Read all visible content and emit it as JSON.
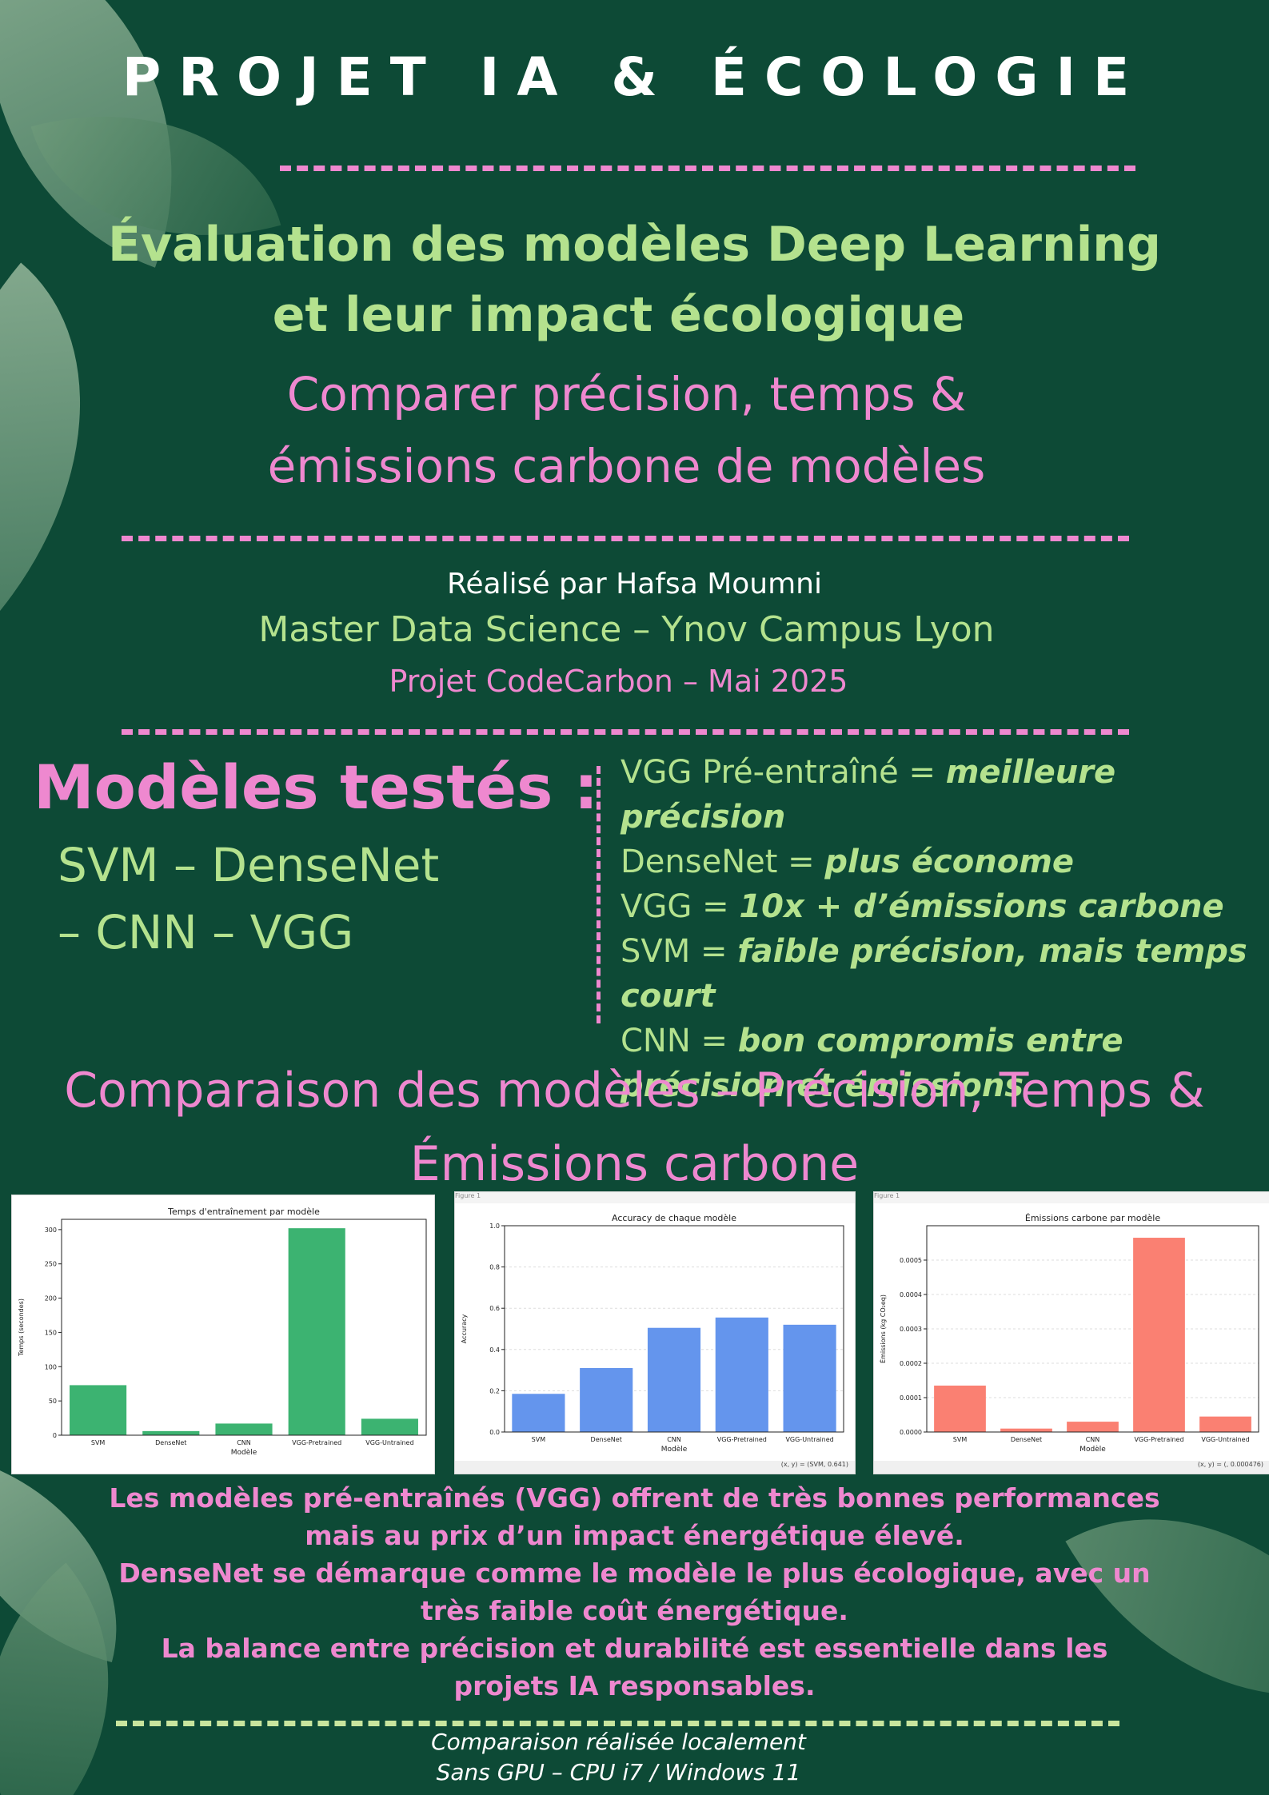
{
  "header": {
    "title": "PROJET IA & ÉCOLOGIE",
    "subtitle_line1": "Évaluation des modèles Deep Learning",
    "subtitle_line2": "et leur impact écologique",
    "tagline_line1": "Comparer précision, temps &",
    "tagline_line2": "émissions carbone de modèles"
  },
  "credits": {
    "author": "Réalisé par Hafsa Moumni",
    "program": "Master Data Science – Ynov Campus Lyon",
    "project": "Projet CodeCarbon – Mai 2025"
  },
  "models": {
    "heading": "Modèles testés :",
    "list_line1": "SVM – DenseNet",
    "list_line2": "– CNN – VGG"
  },
  "findings": [
    {
      "label": "VGG Pré-entraîné = ",
      "value": "meilleure précision"
    },
    {
      "label": "DenseNet = ",
      "value": "plus économe"
    },
    {
      "label": "VGG = ",
      "value": "10x + d’émissions carbone"
    },
    {
      "label": "SVM = ",
      "value": "faible précision, mais temps court"
    },
    {
      "label": "CNN = ",
      "value": "bon compromis entre précision et émissions"
    }
  ],
  "comparison": {
    "heading_line1": "Comparaison des modèles – Précision, Temps &",
    "heading_line2": "Émissions carbone"
  },
  "colors": {
    "background": "#0d4a36",
    "pink": "#ee88cf",
    "green": "#b4e28e",
    "bar_time": "#3cb371",
    "bar_accuracy": "#6495ed",
    "bar_emissions": "#fa8072"
  },
  "chart_data": [
    {
      "type": "bar",
      "title": "Temps d'entraînement par modèle",
      "xlabel": "Modèle",
      "ylabel": "Temps (secondes)",
      "categories": [
        "SVM",
        "DenseNet",
        "CNN",
        "VGG-Pretrained",
        "VGG-Untrained"
      ],
      "values": [
        73,
        6,
        17,
        302,
        24
      ],
      "ylim": [
        0,
        315
      ],
      "yticks": [
        "0",
        "50",
        "100",
        "150",
        "200",
        "250",
        "300"
      ],
      "ytick_values": [
        0,
        50,
        100,
        150,
        200,
        250,
        300
      ],
      "color": "#3cb371",
      "window_title": "",
      "status": "",
      "grid": false
    },
    {
      "type": "bar",
      "title": "Accuracy de chaque modèle",
      "xlabel": "Modèle",
      "ylabel": "Accuracy",
      "categories": [
        "SVM",
        "DenseNet",
        "CNN",
        "VGG-Pretrained",
        "VGG-Untrained"
      ],
      "values": [
        0.185,
        0.31,
        0.505,
        0.555,
        0.52
      ],
      "ylim": [
        0,
        1.0
      ],
      "yticks": [
        "0.0",
        "0.2",
        "0.4",
        "0.6",
        "0.8",
        "1.0"
      ],
      "ytick_values": [
        0,
        0.2,
        0.4,
        0.6,
        0.8,
        1.0
      ],
      "color": "#6495ed",
      "window_title": "Figure 1",
      "status": "(x, y) = (SVM, 0.641)",
      "grid": true
    },
    {
      "type": "bar",
      "title": "Émissions carbone par modèle",
      "xlabel": "Modèle",
      "ylabel": "Émissions (kg CO₂eq)",
      "categories": [
        "SVM",
        "DenseNet",
        "CNN",
        "VGG-Pretrained",
        "VGG-Untrained"
      ],
      "values": [
        0.000135,
        1e-05,
        3e-05,
        0.000565,
        4.5e-05
      ],
      "ylim": [
        0,
        0.0006
      ],
      "yticks": [
        "0.0000",
        "0.0001",
        "0.0002",
        "0.0003",
        "0.0004",
        "0.0005"
      ],
      "ytick_values": [
        0,
        0.0001,
        0.0002,
        0.0003,
        0.0004,
        0.0005
      ],
      "color": "#fa8072",
      "window_title": "Figure 1",
      "status": "(x, y) = (, 0.000476)",
      "grid": true
    }
  ],
  "conclusion": [
    "Les modèles pré-entraînés (VGG) offrent de très bonnes performances",
    "mais au prix d’un impact énergétique élevé.",
    "DenseNet se démarque comme le modèle le plus écologique, avec un",
    "très faible coût énergétique.",
    "La balance entre précision et durabilité est essentielle dans les",
    "projets IA responsables."
  ],
  "footer": {
    "line1": "Comparaison réalisée localement",
    "line2": "Sans GPU – CPU i7 / Windows 11"
  }
}
